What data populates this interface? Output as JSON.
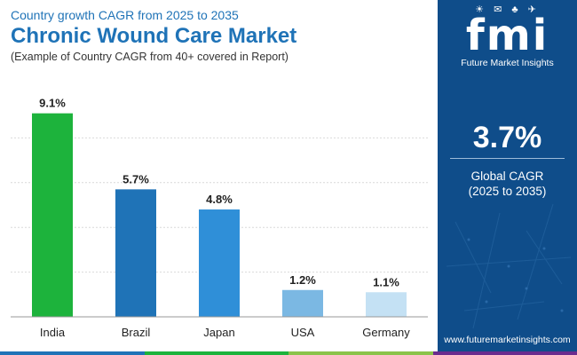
{
  "header": {
    "subtitle": "Country growth CAGR from 2025 to 2035",
    "title": "Chronic Wound Care Market",
    "caption": "(Example of Country CAGR from 40+ covered in Report)"
  },
  "sidebar": {
    "logo_icons": "☀ ✉ ♣ ✈",
    "logo_mark": "fmi",
    "logo_text": "Future Market Insights",
    "kpi_value": "3.7%",
    "kpi_label_line1": "Global CAGR",
    "kpi_label_line2": "(2025 to 2035)",
    "website": "www.futuremarketinsights.com",
    "color": "#0f4d8a"
  },
  "chart_data": {
    "type": "bar",
    "title": "Chronic Wound Care Market",
    "subtitle": "Country growth CAGR from 2025 to 2035",
    "categories": [
      "India",
      "Brazil",
      "Japan",
      "USA",
      "Germany"
    ],
    "values": [
      9.1,
      5.7,
      4.8,
      1.2,
      1.1
    ],
    "value_labels": [
      "9.1%",
      "5.7%",
      "4.8%",
      "1.2%",
      "1.1%"
    ],
    "bar_colors": [
      "#1db33c",
      "#1f73b7",
      "#2f8fd8",
      "#7bb8e3",
      "#c4e1f4"
    ],
    "xlabel": "",
    "ylabel": "",
    "ylim": [
      0,
      10
    ],
    "grid": true
  },
  "bottom_strip_colors": [
    "#1f73b7",
    "#1db33c",
    "#8bc34a",
    "#6a2c8e"
  ]
}
